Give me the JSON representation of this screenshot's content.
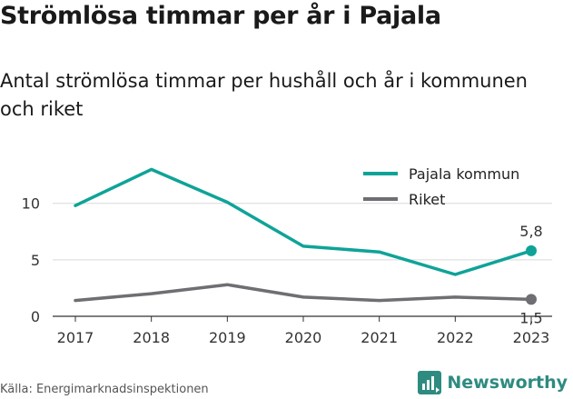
{
  "title": "Strömlösa timmar per år i Pajala",
  "subtitle": "Antal strömlösa timmar per hushåll och år i kommunen och riket",
  "source": "Källa: Energimarknadsinspektionen",
  "brand": "Newsworthy",
  "colors": {
    "pajala": "#0fa398",
    "riket": "#6e6e73",
    "grid": "#d9d9d9",
    "brand": "#2e8b80"
  },
  "chart_data": {
    "type": "line",
    "x": [
      "2017",
      "2018",
      "2019",
      "2020",
      "2021",
      "2022",
      "2023"
    ],
    "ylim": [
      0,
      14
    ],
    "yticks": [
      "0",
      "5",
      "10"
    ],
    "series": [
      {
        "name": "Pajala kommun",
        "values": [
          9.8,
          13.0,
          10.1,
          6.2,
          5.7,
          3.7,
          5.8
        ],
        "end_label": "5,8"
      },
      {
        "name": "Riket",
        "values": [
          1.4,
          2.0,
          2.8,
          1.7,
          1.4,
          1.7,
          1.5
        ],
        "end_label": "1,5"
      }
    ],
    "legend": "top-right",
    "grid": true
  }
}
